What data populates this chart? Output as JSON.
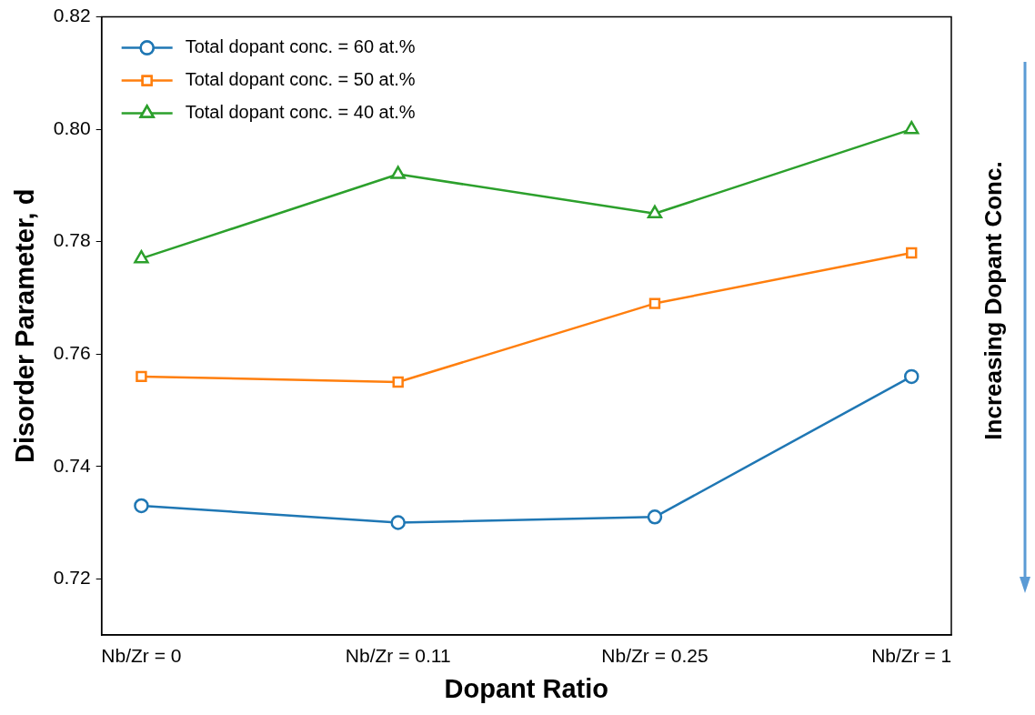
{
  "chart_data": {
    "type": "line",
    "xlabel": "Dopant Ratio",
    "ylabel": "Disorder Parameter, d",
    "categories": [
      "Nb/Zr = 0",
      "Nb/Zr = 0.11",
      "Nb/Zr = 0.25",
      "Nb/Zr = 1"
    ],
    "series": [
      {
        "name": "Total dopant conc. = 60 at.%",
        "color": "#1f77b4",
        "marker": "circle",
        "values": [
          0.733,
          0.73,
          0.731,
          0.756
        ]
      },
      {
        "name": "Total dopant conc. = 50 at.%",
        "color": "#ff7f0e",
        "marker": "square",
        "values": [
          0.756,
          0.755,
          0.769,
          0.778
        ]
      },
      {
        "name": "Total dopant conc. = 40 at.%",
        "color": "#2ca02c",
        "marker": "triangle",
        "values": [
          0.777,
          0.792,
          0.785,
          0.8
        ]
      }
    ],
    "ylim": [
      0.71,
      0.82
    ],
    "yticks": [
      0.72,
      0.74,
      0.76,
      0.78,
      {
        "value": 0.8,
        "label": "0.80"
      },
      0.82
    ],
    "grid": false,
    "legend": "top left",
    "line_style": "solid",
    "annotations": [
      "Increasing Dopant Conc."
    ]
  }
}
